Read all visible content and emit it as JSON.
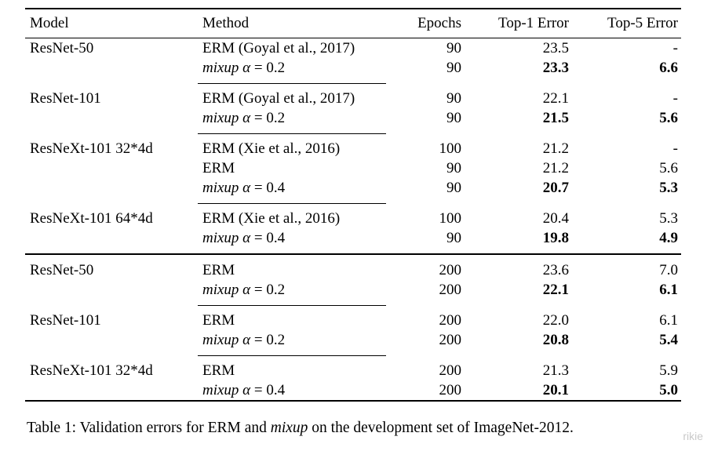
{
  "page": {
    "background": "#ffffff",
    "text_color": "#000000",
    "rule_color": "#000000"
  },
  "table": {
    "columns": [
      "Model",
      "Method",
      "Epochs",
      "Top-1 Error",
      "Top-5 Error"
    ],
    "sections": [
      {
        "groups": [
          {
            "model": "ResNet-50",
            "rows": [
              {
                "method_em": "",
                "method_text": "ERM (Goyal et al., 2017)",
                "epochs": "90",
                "top1": "23.5",
                "top5": "-",
                "emphasized": false
              },
              {
                "method_em": "mixup α",
                "method_text": "= 0.2",
                "epochs": "90",
                "top1": "23.3",
                "top5": "6.6",
                "emphasized": true
              }
            ]
          },
          {
            "model": "ResNet-101",
            "rows": [
              {
                "method_em": "",
                "method_text": "ERM (Goyal et al., 2017)",
                "epochs": "90",
                "top1": "22.1",
                "top5": "-",
                "emphasized": false
              },
              {
                "method_em": "mixup α",
                "method_text": "= 0.2",
                "epochs": "90",
                "top1": "21.5",
                "top5": "5.6",
                "emphasized": true
              }
            ]
          },
          {
            "model": "ResNeXt-101 32*4d",
            "rows": [
              {
                "method_em": "",
                "method_text": "ERM (Xie et al., 2016)",
                "epochs": "100",
                "top1": "21.2",
                "top5": "-",
                "emphasized": false
              },
              {
                "method_em": "",
                "method_text": "ERM",
                "epochs": "90",
                "top1": "21.2",
                "top5": "5.6",
                "emphasized": false
              },
              {
                "method_em": "mixup α",
                "method_text": "= 0.4",
                "epochs": "90",
                "top1": "20.7",
                "top5": "5.3",
                "emphasized": true
              }
            ]
          },
          {
            "model": "ResNeXt-101 64*4d",
            "rows": [
              {
                "method_em": "",
                "method_text": "ERM (Xie et al., 2016)",
                "epochs": "100",
                "top1": "20.4",
                "top5": "5.3",
                "emphasized": false
              },
              {
                "method_em": "mixup α",
                "method_text": "= 0.4",
                "epochs": "90",
                "top1": "19.8",
                "top5": "4.9",
                "emphasized": true
              }
            ]
          }
        ]
      },
      {
        "groups": [
          {
            "model": "ResNet-50",
            "rows": [
              {
                "method_em": "",
                "method_text": "ERM",
                "epochs": "200",
                "top1": "23.6",
                "top5": "7.0",
                "emphasized": false
              },
              {
                "method_em": "mixup α",
                "method_text": "= 0.2",
                "epochs": "200",
                "top1": "22.1",
                "top5": "6.1",
                "emphasized": true
              }
            ]
          },
          {
            "model": "ResNet-101",
            "rows": [
              {
                "method_em": "",
                "method_text": "ERM",
                "epochs": "200",
                "top1": "22.0",
                "top5": "6.1",
                "emphasized": false
              },
              {
                "method_em": "mixup α",
                "method_text": "= 0.2",
                "epochs": "200",
                "top1": "20.8",
                "top5": "5.4",
                "emphasized": true
              }
            ]
          },
          {
            "model": "ResNeXt-101 32*4d",
            "rows": [
              {
                "method_em": "",
                "method_text": "ERM",
                "epochs": "200",
                "top1": "21.3",
                "top5": "5.9",
                "emphasized": false
              },
              {
                "method_em": "mixup α",
                "method_text": "= 0.4",
                "epochs": "200",
                "top1": "20.1",
                "top5": "5.0",
                "emphasized": true
              }
            ]
          }
        ]
      }
    ]
  },
  "caption": {
    "prefix": "Table 1: Validation errors for ERM and ",
    "em": "mixup",
    "suffix": " on the development set of ImageNet-2012."
  },
  "watermark": {
    "text": "rikie",
    "color": "#c9c9c9"
  }
}
